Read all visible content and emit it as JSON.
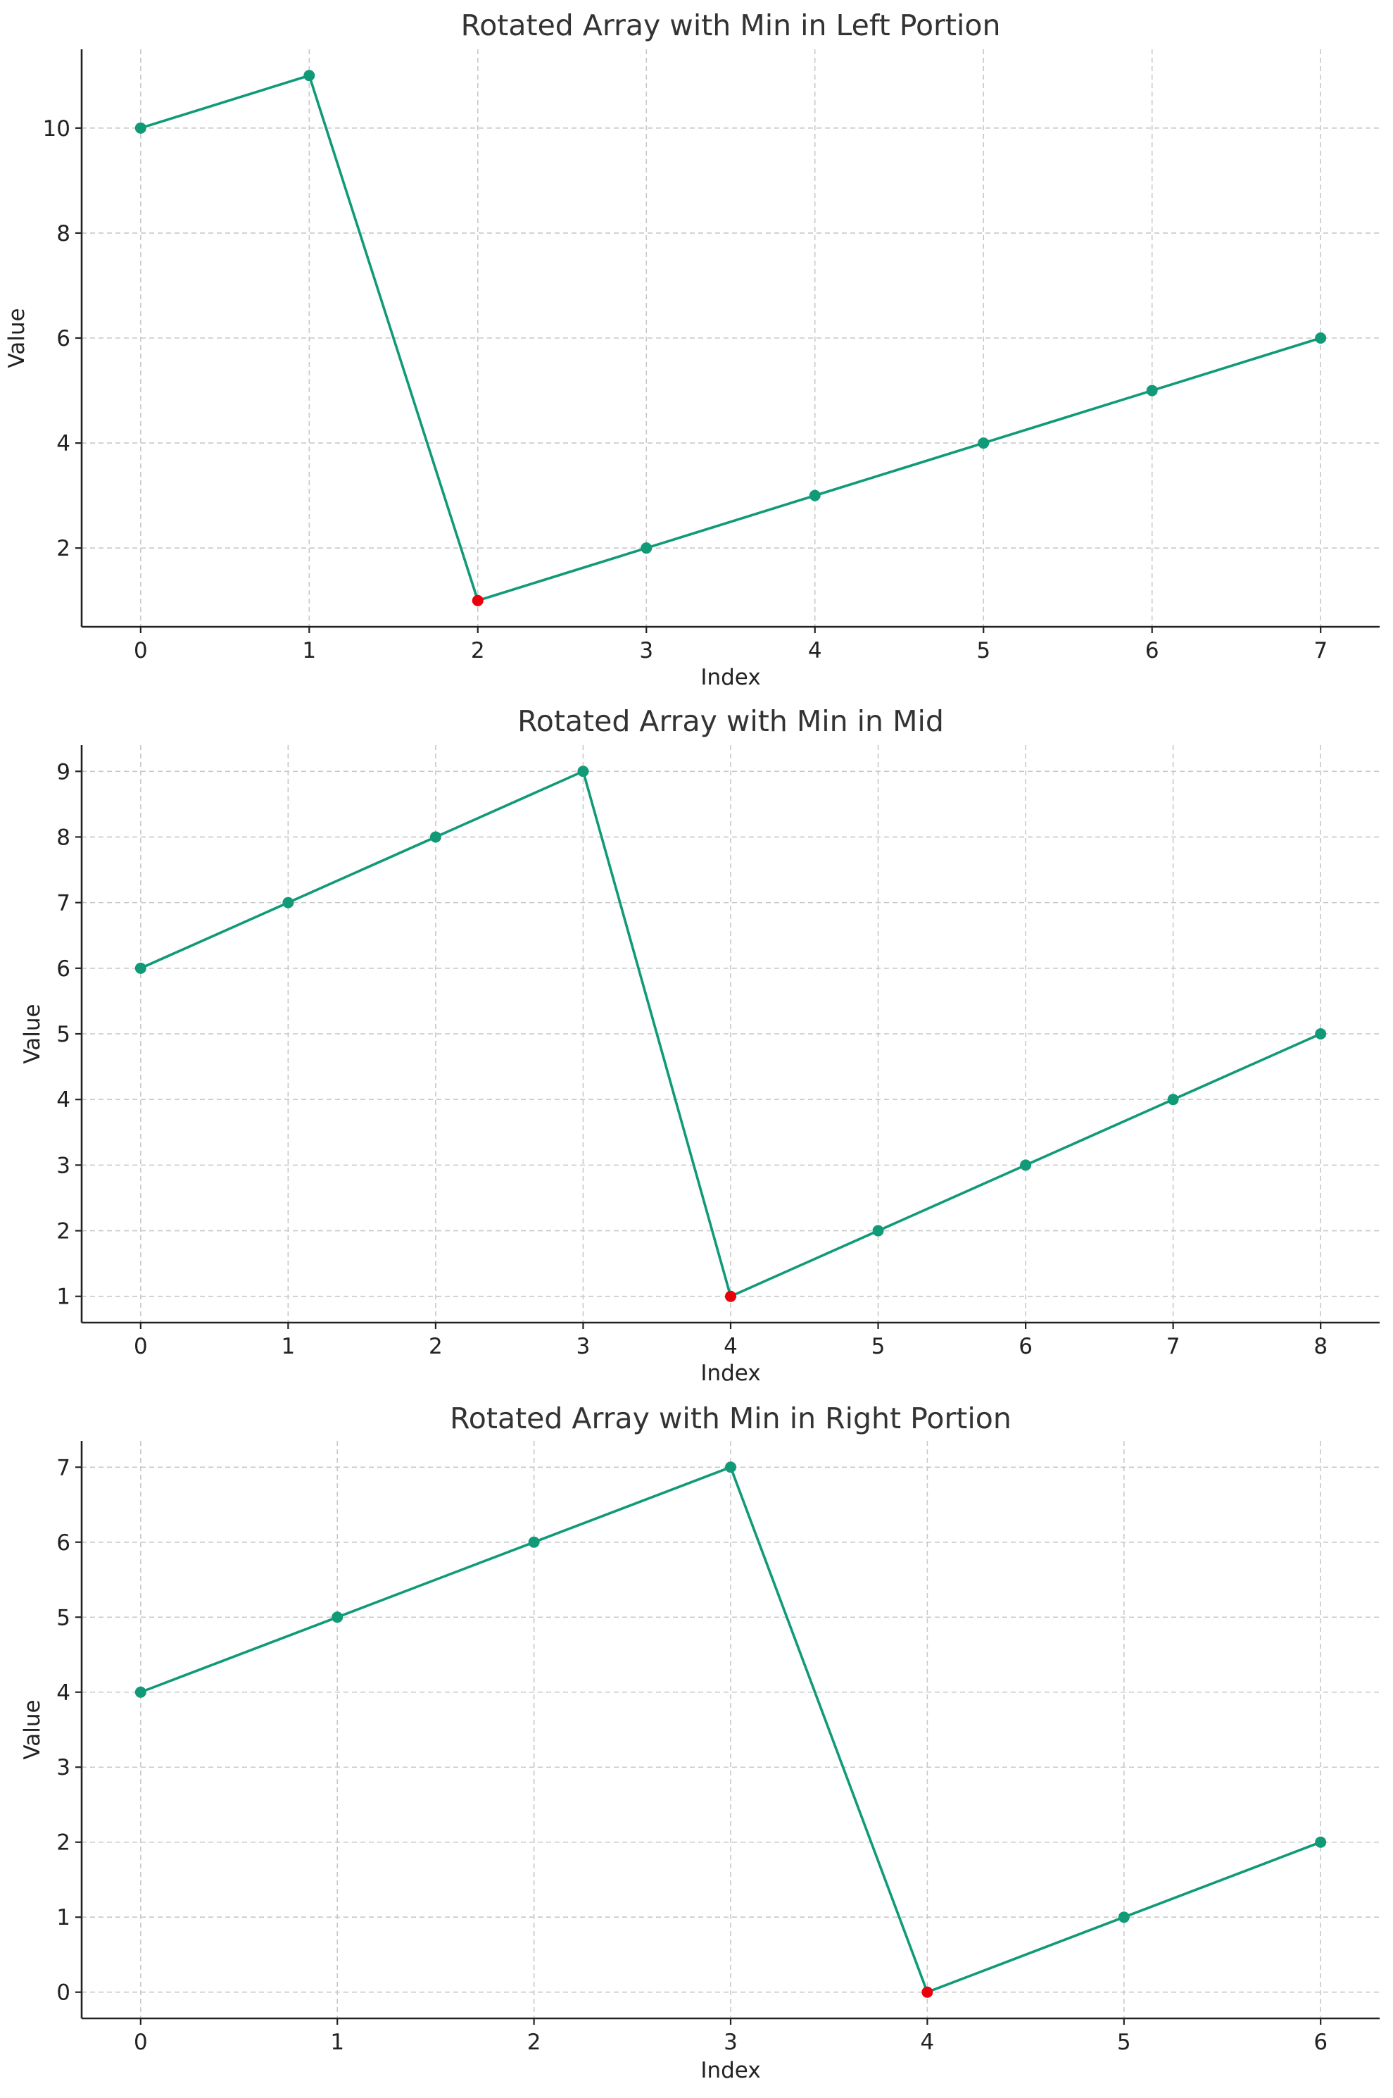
{
  "chart_data": [
    {
      "type": "line",
      "title": "Rotated Array with Min in Left Portion",
      "xlabel": "Index",
      "ylabel": "Value",
      "x": [
        0,
        1,
        2,
        3,
        4,
        5,
        6,
        7
      ],
      "y": [
        10,
        11,
        1,
        2,
        3,
        4,
        5,
        6
      ],
      "min_index": 2,
      "xlim": [
        -0.35,
        7.35
      ],
      "ylim": [
        0.5,
        11.5
      ],
      "xticks": [
        0,
        1,
        2,
        3,
        4,
        5,
        6,
        7
      ],
      "yticks": [
        2,
        4,
        6,
        8,
        10
      ],
      "grid": true,
      "line_color": "#109a77",
      "min_color": "#e8000b"
    },
    {
      "type": "line",
      "title": "Rotated Array with Min in Mid",
      "xlabel": "Index",
      "ylabel": "Value",
      "x": [
        0,
        1,
        2,
        3,
        4,
        5,
        6,
        7,
        8
      ],
      "y": [
        6,
        7,
        8,
        9,
        1,
        2,
        3,
        4,
        5
      ],
      "min_index": 4,
      "xlim": [
        -0.4,
        8.4
      ],
      "ylim": [
        0.6,
        9.4
      ],
      "xticks": [
        0,
        1,
        2,
        3,
        4,
        5,
        6,
        7,
        8
      ],
      "yticks": [
        1,
        2,
        3,
        4,
        5,
        6,
        7,
        8,
        9
      ],
      "grid": true,
      "line_color": "#109a77",
      "min_color": "#e8000b"
    },
    {
      "type": "line",
      "title": "Rotated Array with Min in Right Portion",
      "xlabel": "Index",
      "ylabel": "Value",
      "x": [
        0,
        1,
        2,
        3,
        4,
        5,
        6
      ],
      "y": [
        4,
        5,
        6,
        7,
        0,
        1,
        2
      ],
      "min_index": 4,
      "xlim": [
        -0.3,
        6.3
      ],
      "ylim": [
        -0.35,
        7.35
      ],
      "xticks": [
        0,
        1,
        2,
        3,
        4,
        5,
        6
      ],
      "yticks": [
        0,
        1,
        2,
        3,
        4,
        5,
        6,
        7
      ],
      "grid": true,
      "line_color": "#109a77",
      "min_color": "#e8000b"
    }
  ]
}
